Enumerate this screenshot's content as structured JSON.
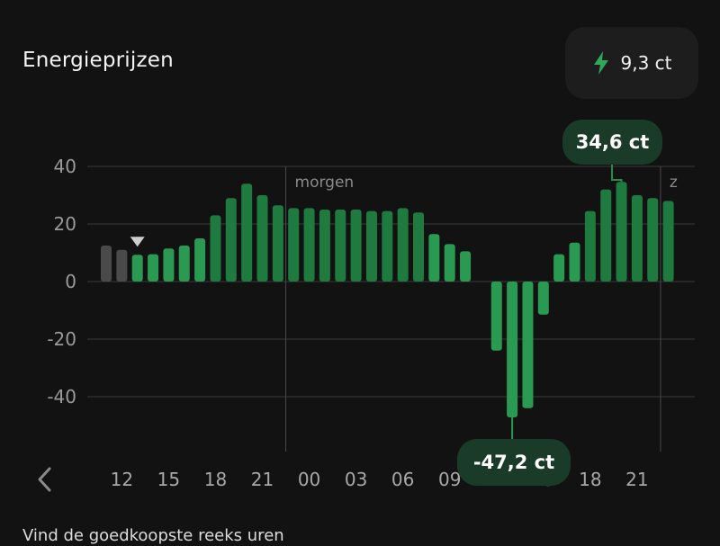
{
  "header": {
    "title": "Energieprijzen",
    "current_price": "9,3 ct",
    "bolt_icon": "lightning-bolt-icon"
  },
  "footer": {
    "text": "Vind de goedkoopste reeks uren"
  },
  "colors": {
    "background": "#121212",
    "bar_green": "#2a9a52",
    "bar_green_dark": "#1f7a3f",
    "bar_past": "#4a4a4a",
    "callout_bg": "#1b3b29",
    "grid": "#3a3a3a"
  },
  "chart_data": {
    "type": "bar",
    "title": "",
    "xlabel": "",
    "ylabel": "",
    "ylim": [
      -60,
      40
    ],
    "yticks": [
      40,
      20,
      0,
      -20,
      -40
    ],
    "grid": true,
    "x_tick_labels": [
      "12",
      "15",
      "18",
      "21",
      "00",
      "03",
      "06",
      "09",
      "12",
      "15",
      "18",
      "21"
    ],
    "day_labels": [
      {
        "label": "morgen",
        "at_hour_index": 12
      },
      {
        "label": "z",
        "at_hour_index": 36
      }
    ],
    "start_hour": 11,
    "current_hour_index": 2,
    "values": [
      12.5,
      11,
      9.3,
      9.5,
      11.5,
      12.5,
      15,
      23,
      29,
      34,
      30,
      26.5,
      25.5,
      25.5,
      25,
      25,
      25,
      24.5,
      24.5,
      25.5,
      24,
      16.5,
      13,
      10.5,
      0,
      -24,
      -47.2,
      -44,
      -11.5,
      9.5,
      13.5,
      24.5,
      32,
      34.6,
      30,
      29,
      28
    ],
    "past_hours": 2,
    "max_label": "34,6 ct",
    "min_label": "-47,2 ct",
    "max_index": 33,
    "min_index": 26
  }
}
